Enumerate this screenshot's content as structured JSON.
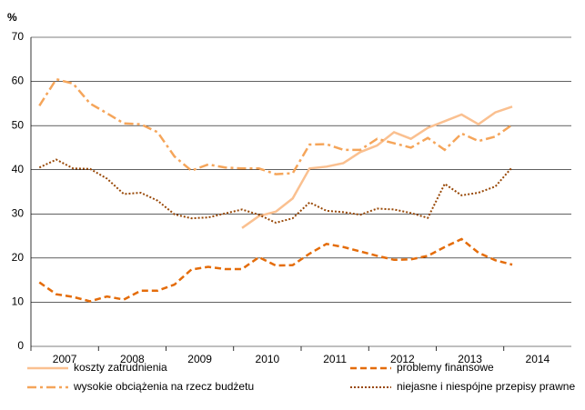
{
  "chart_data": {
    "type": "line",
    "y_label": "%",
    "categories": [
      "2007",
      null,
      null,
      null,
      "2008",
      null,
      null,
      null,
      "2009",
      null,
      null,
      null,
      "2010",
      null,
      null,
      null,
      "2011",
      null,
      null,
      null,
      "2012",
      null,
      null,
      null,
      "2013",
      null,
      null,
      null,
      "2014"
    ],
    "series": [
      {
        "name": "koszty zatrudnienia",
        "color": "#fac090",
        "style": "solid",
        "values": [
          null,
          null,
          null,
          null,
          null,
          null,
          null,
          null,
          null,
          null,
          null,
          null,
          26.8,
          29.5,
          30.5,
          33.5,
          40.3,
          40.7,
          41.5,
          44,
          45.5,
          48.5,
          47,
          49.5,
          51,
          52.5,
          50.3,
          53,
          54.3
        ]
      },
      {
        "name": "problemy finansowe",
        "color": "#e46c0a",
        "style": "dashed",
        "values": [
          14.5,
          11.8,
          11.2,
          10.2,
          11.3,
          10.6,
          12.6,
          12.6,
          14,
          17.4,
          18,
          17.5,
          17.5,
          20.2,
          18.3,
          18.4,
          21,
          23.2,
          22.5,
          21.5,
          20.5,
          19.6,
          19.7,
          20.5,
          22.5,
          24.3,
          21.2,
          19.5,
          18.5
        ]
      },
      {
        "name": "wysokie obciążenia na rzecz budżetu",
        "color": "#f5a55a",
        "style": "dashdot",
        "values": [
          54.5,
          60.5,
          59.5,
          55,
          52.8,
          50.5,
          50.3,
          48.5,
          43,
          39.8,
          41.2,
          40.5,
          40.3,
          40.3,
          39,
          39.2,
          45.7,
          45.8,
          44.5,
          44.5,
          47,
          46,
          45,
          47.2,
          44.5,
          48.2,
          46.5,
          47.5,
          50.2
        ]
      },
      {
        "name": "niejasne i niespójne przepisy prawne",
        "color": "#984807",
        "style": "dotted",
        "values": [
          40.5,
          42.3,
          40.3,
          40.2,
          38,
          34.5,
          34.8,
          33,
          29.9,
          29,
          29.2,
          30.1,
          31,
          29.8,
          28,
          29,
          32.6,
          30.7,
          30.4,
          29.8,
          31.2,
          31,
          30.2,
          29.1,
          36.8,
          34.2,
          34.8,
          36.2,
          40.6
        ]
      }
    ],
    "ylim": [
      0,
      70
    ],
    "yticks": [
      0,
      10,
      20,
      30,
      40,
      50,
      60,
      70
    ],
    "grid": true
  }
}
